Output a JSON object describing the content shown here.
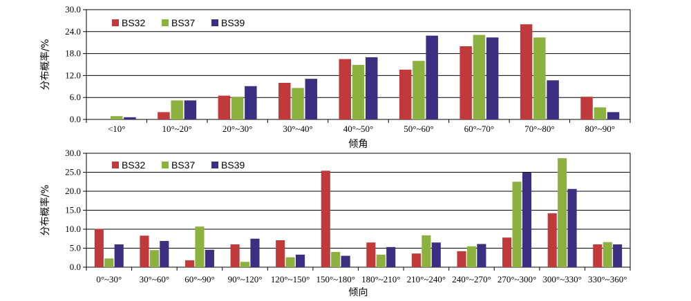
{
  "chart_data": [
    {
      "type": "bar",
      "title": "",
      "xlabel": "倾角",
      "ylabel": "分布概率/%",
      "ylim": [
        0,
        30
      ],
      "yticks": [
        "0.0",
        "6.0",
        "12.0",
        "18.0",
        "24.0",
        "30.0"
      ],
      "grid": true,
      "legend_position": "top-left",
      "categories": [
        "<10°",
        "10°~20°",
        "20°~30°",
        "30°~40°",
        "40°~50°",
        "50°~60°",
        "60°~70°",
        "70°~80°",
        "80°~90°"
      ],
      "series": [
        {
          "name": "BS32",
          "color": "#c0393b",
          "values": [
            0.0,
            2.0,
            6.5,
            10.0,
            16.5,
            13.6,
            20.0,
            26.0,
            6.2
          ]
        },
        {
          "name": "BS37",
          "color": "#8db13f",
          "values": [
            0.9,
            5.2,
            6.2,
            8.6,
            14.9,
            16.0,
            23.1,
            22.4,
            3.3
          ]
        },
        {
          "name": "BS39",
          "color": "#3c2f82",
          "values": [
            0.6,
            5.2,
            9.1,
            11.1,
            17.0,
            22.9,
            22.4,
            10.7,
            2.0
          ]
        }
      ]
    },
    {
      "type": "bar",
      "title": "",
      "xlabel": "倾向",
      "ylabel": "分布概率/%",
      "ylim": [
        0,
        30
      ],
      "yticks": [
        "0.0",
        "5.0",
        "10.0",
        "15.0",
        "20.0",
        "25.0",
        "30.0"
      ],
      "grid": true,
      "legend_position": "top-left",
      "categories": [
        "0°~30°",
        "30°~60°",
        "60°~90°",
        "90°~120°",
        "120°~150°",
        "150°~180°",
        "180°~210°",
        "210°~240°",
        "240°~270°",
        "270°~300°",
        "300°~330°",
        "330°~360°"
      ],
      "series": [
        {
          "name": "BS32",
          "color": "#c0393b",
          "values": [
            10.1,
            8.3,
            1.8,
            6.0,
            7.1,
            25.4,
            6.5,
            3.6,
            4.2,
            7.8,
            14.2,
            6.0
          ]
        },
        {
          "name": "BS37",
          "color": "#8db13f",
          "values": [
            2.3,
            4.5,
            10.7,
            1.4,
            2.6,
            4.0,
            3.3,
            8.4,
            5.5,
            22.5,
            28.7,
            6.6
          ]
        },
        {
          "name": "BS39",
          "color": "#3c2f82",
          "values": [
            6.0,
            6.9,
            4.6,
            7.5,
            3.3,
            3.0,
            5.3,
            6.5,
            6.1,
            24.9,
            20.6,
            6.0
          ]
        }
      ]
    }
  ]
}
